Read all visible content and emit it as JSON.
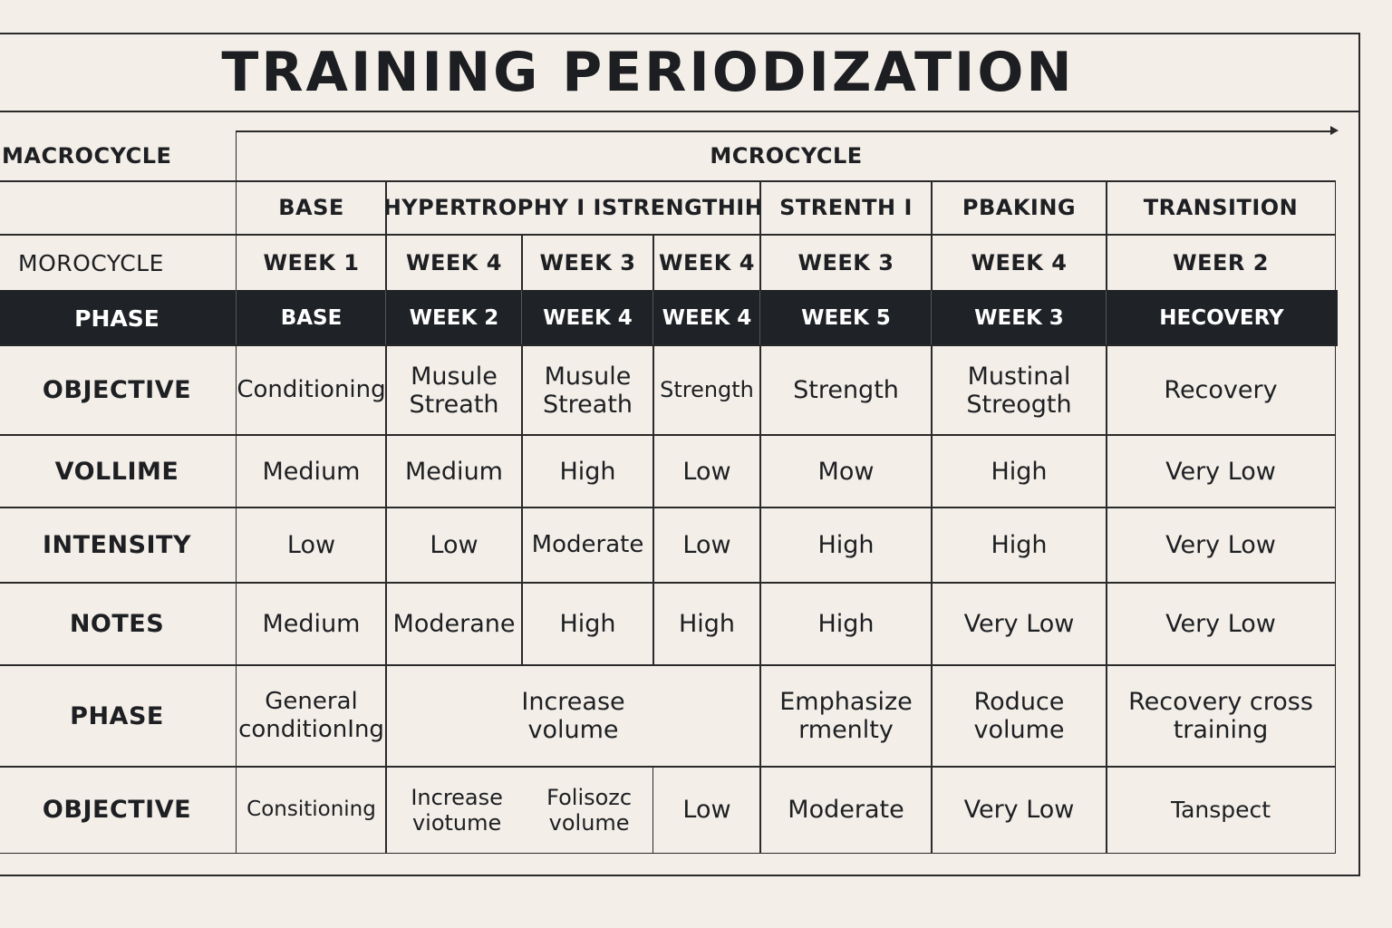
{
  "title": "TRAINING PERIODIZATION",
  "header": {
    "macrocycle": "MACROCYCLE",
    "mcrocycle": "MCROCYCLE",
    "morocycle": "MOROCYCLE",
    "phases": [
      "BASE",
      "HYPERTROPHY I ISTRENGTHIH",
      "STRENTH I",
      "PBAKING",
      "TRANSITION"
    ],
    "weeks": [
      "WEEK 1",
      "WEEK 4",
      "WEEK 3",
      "WEEK 4",
      "WEEK 3",
      "WEEK 4",
      "WEER 2"
    ]
  },
  "phase_row": {
    "label": "PHASE",
    "cells": [
      "BASE",
      "WEEK 2",
      "WEEK 4",
      "WEEK 4",
      "WEEK 5",
      "WEEK 3",
      "HECOVERY"
    ]
  },
  "objective_row": {
    "label": "OBJECTIVE",
    "cells": [
      "Conditioning",
      "Musule Streath",
      "Musule Streath",
      "Strength",
      "Strength",
      "Mustinal Streogth",
      "Recovery"
    ]
  },
  "volume_row": {
    "label": "VOLLIME",
    "cells": [
      "Medium",
      "Medium",
      "High",
      "Low",
      "Mow",
      "High",
      "Very Low"
    ]
  },
  "intensity_row": {
    "label": "INTENSITY",
    "cells": [
      "Low",
      "Low",
      "Moderate",
      "Low",
      "High",
      "High",
      "Very Low"
    ]
  },
  "notes_row": {
    "label": "NOTES",
    "cells": [
      "Medium",
      "Moderane",
      "High",
      "High",
      "High",
      "Very Low",
      "Very Low"
    ]
  },
  "phase2_row": {
    "label": "PHASE",
    "cells": [
      "General conditionIng",
      "Increase volume",
      "Emphasize rmenlty",
      "Roduce volume",
      "Recovery cross training"
    ]
  },
  "objective2_row": {
    "label": "OBJECTIVE",
    "cells": [
      "Consitioning",
      "Increase viotume",
      "Folisozc volume",
      "Low",
      "Moderate",
      "Very Low",
      "Tanspect"
    ]
  }
}
